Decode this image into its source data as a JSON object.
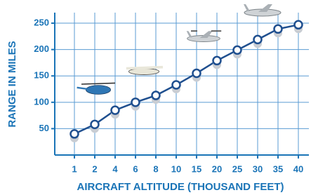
{
  "chart_data": {
    "type": "line",
    "x_label": "AIRCRAFT ALTITUDE  (THOUSAND FEET)",
    "y_label": "RANGE IN MILES",
    "categories": [
      "1",
      "2",
      "4",
      "6",
      "8",
      "10",
      "15",
      "20",
      "25",
      "30",
      "35",
      "40"
    ],
    "values": [
      40,
      58,
      85,
      100,
      113,
      133,
      155,
      179,
      199,
      219,
      239,
      247
    ],
    "color": "#1f4f8f",
    "ylim": [
      0,
      270
    ],
    "yticks": [
      50,
      100,
      150,
      200,
      250
    ],
    "grid": true
  }
}
